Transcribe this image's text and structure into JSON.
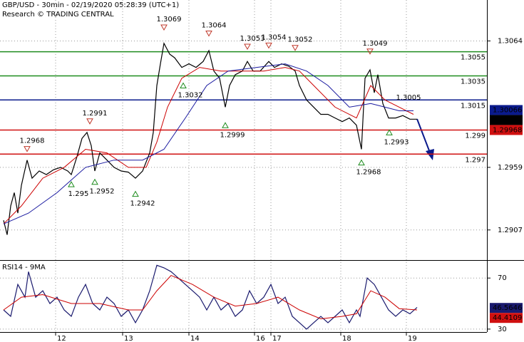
{
  "chart_data": [
    {
      "type": "line",
      "title": "GBP/USD - 30min - 02/19/2020 05:28:39 (UTC+1)",
      "subtitle": "Research © TRADING CENTRAL",
      "xlim": [
        0,
        683
      ],
      "ylim": [
        1.2882,
        1.3098
      ],
      "yticks": [
        1.3064,
        1.2959,
        1.2907
      ],
      "grid": true,
      "series": [
        {
          "color": "#000000",
          "x": [
            5,
            10,
            15,
            20,
            25,
            30,
            38,
            45,
            55,
            65,
            75,
            85,
            95,
            100,
            108,
            115,
            122,
            128,
            133,
            140,
            150,
            160,
            170,
            180,
            190,
            200,
            210,
            215,
            220,
            225,
            230,
            238,
            245,
            255,
            265,
            275,
            285,
            293,
            300,
            308,
            316,
            322,
            330,
            340,
            347,
            355,
            365,
            377,
            385,
            395,
            405,
            414,
            420,
            430,
            440,
            450,
            460,
            470,
            480,
            490,
            500,
            507,
            512,
            519,
            525,
            530,
            537,
            545,
            555,
            565,
            575,
            585
          ],
          "values": [
            1.2915,
            1.2903,
            1.2927,
            1.2938,
            1.2921,
            1.2944,
            1.2965,
            1.295,
            1.2956,
            1.2953,
            1.2957,
            1.2959,
            1.2956,
            1.2953,
            1.2968,
            1.2983,
            1.2988,
            1.2977,
            1.2956,
            1.2971,
            1.2965,
            1.2959,
            1.2956,
            1.2955,
            1.295,
            1.2956,
            1.2971,
            1.2988,
            1.3027,
            1.3045,
            1.3062,
            1.3053,
            1.305,
            1.3042,
            1.3045,
            1.3042,
            1.3047,
            1.3056,
            1.3039,
            1.3033,
            1.3009,
            1.3027,
            1.3036,
            1.3039,
            1.3047,
            1.3039,
            1.3039,
            1.3047,
            1.3042,
            1.3045,
            1.3043,
            1.3039,
            1.3027,
            1.3015,
            1.3009,
            1.3003,
            1.3003,
            1.3,
            1.2997,
            1.3,
            1.2994,
            1.2974,
            1.3033,
            1.304,
            1.3021,
            1.3036,
            1.3012,
            1.3,
            1.3,
            1.3002,
            1.2999,
            1.2999
          ]
        },
        {
          "color": "#cc0000",
          "x": [
            5,
            30,
            60,
            90,
            120,
            150,
            180,
            205,
            220,
            235,
            255,
            280,
            310,
            340,
            370,
            400,
            420,
            440,
            470,
            500,
            520,
            540,
            560,
            580
          ],
          "values": [
            1.2912,
            1.2927,
            1.295,
            1.2959,
            1.2974,
            1.2971,
            1.2959,
            1.2959,
            1.298,
            1.3009,
            1.3033,
            1.3042,
            1.3039,
            1.3039,
            1.3039,
            1.3042,
            1.3039,
            1.3027,
            1.3009,
            1.3,
            1.3027,
            1.3015,
            1.3009,
            1.3003
          ]
        },
        {
          "color": "#1a1aa0",
          "x": [
            5,
            40,
            80,
            120,
            160,
            200,
            230,
            260,
            290,
            320,
            360,
            400,
            430,
            460,
            490,
            520,
            560,
            580
          ],
          "values": [
            1.2912,
            1.2921,
            1.2938,
            1.2959,
            1.2965,
            1.2965,
            1.2974,
            1.3,
            1.3027,
            1.3039,
            1.3042,
            1.3045,
            1.3039,
            1.3027,
            1.3009,
            1.3012,
            1.3006,
            1.3006
          ]
        }
      ],
      "levels": [
        {
          "value": 1.3055,
          "color": "#1e8c1e"
        },
        {
          "value": 1.3035,
          "color": "#1e8c1e"
        },
        {
          "value": 1.3015,
          "color": "#0a1a8c"
        },
        {
          "value": 1.299,
          "color": "#d01010"
        },
        {
          "value": 1.297,
          "color": "#d01010"
        }
      ],
      "price_tags": [
        {
          "value": 1.30066,
          "color": "#0a1a8c"
        },
        {
          "value": 1.3,
          "color": "#000000"
        },
        {
          "value": 1.29968,
          "color": "#d01010"
        }
      ],
      "annotations": [
        {
          "x": 38,
          "value": 1.2968,
          "kind": "high"
        },
        {
          "x": 126,
          "value": 1.2991,
          "kind": "high"
        },
        {
          "x": 230,
          "value": 1.3069,
          "kind": "high"
        },
        {
          "x": 293,
          "value": 1.3064,
          "kind": "high"
        },
        {
          "x": 347,
          "value": 1.3053,
          "kind": "high"
        },
        {
          "x": 377,
          "value": 1.3054,
          "kind": "high"
        },
        {
          "x": 414,
          "value": 1.3052,
          "kind": "high"
        },
        {
          "x": 519,
          "value": 1.3049,
          "kind": "high"
        },
        {
          "x": 563,
          "value": 1.3005,
          "kind": "note"
        },
        {
          "x": 100,
          "value": 1.295,
          "kind": "low"
        },
        {
          "x": 133,
          "value": 1.2952,
          "kind": "low"
        },
        {
          "x": 190,
          "value": 1.2942,
          "kind": "low"
        },
        {
          "x": 257,
          "value": 1.3032,
          "kind": "low"
        },
        {
          "x": 316,
          "value": 1.2999,
          "kind": "low"
        },
        {
          "x": 507,
          "value": 1.2968,
          "kind": "low"
        },
        {
          "x": 546,
          "value": 1.2993,
          "kind": "low"
        }
      ]
    },
    {
      "type": "line",
      "title": "RSI14 - 9MA",
      "xlim": [
        0,
        683
      ],
      "ylim": [
        27.7,
        82.4
      ],
      "yticks": [
        70,
        30
      ],
      "grid": true,
      "xticks": [
        {
          "value": 78,
          "label": "12"
        },
        {
          "value": 172,
          "label": "13"
        },
        {
          "value": 265,
          "label": "14"
        },
        {
          "value": 357,
          "label": "16"
        },
        {
          "value": 380,
          "label": "17"
        },
        {
          "value": 478,
          "label": "18"
        },
        {
          "value": 570,
          "label": "19"
        }
      ],
      "series": [
        {
          "color": "#1a1a6e",
          "x": [
            5,
            15,
            25,
            35,
            40,
            50,
            60,
            70,
            80,
            90,
            100,
            110,
            120,
            130,
            140,
            150,
            160,
            170,
            180,
            190,
            200,
            210,
            220,
            230,
            240,
            250,
            260,
            270,
            280,
            290,
            300,
            310,
            320,
            330,
            340,
            350,
            360,
            370,
            380,
            390,
            400,
            410,
            420,
            430,
            440,
            450,
            460,
            470,
            480,
            490,
            500,
            505,
            515,
            525,
            535,
            545,
            555,
            565,
            575,
            585
          ],
          "values": [
            45,
            40,
            65,
            55,
            75,
            55,
            60,
            50,
            55,
            45,
            40,
            55,
            65,
            50,
            45,
            55,
            50,
            40,
            45,
            35,
            45,
            60,
            80,
            78,
            75,
            70,
            65,
            60,
            55,
            45,
            55,
            45,
            50,
            40,
            45,
            60,
            50,
            55,
            65,
            50,
            55,
            40,
            35,
            30,
            35,
            40,
            35,
            40,
            45,
            35,
            45,
            40,
            70,
            65,
            55,
            45,
            40,
            45,
            42,
            47
          ]
        },
        {
          "color": "#cc0000",
          "x": [
            5,
            30,
            60,
            100,
            140,
            180,
            200,
            220,
            240,
            270,
            300,
            330,
            360,
            390,
            420,
            450,
            480,
            500,
            520,
            540,
            560,
            585
          ],
          "values": [
            45,
            55,
            57,
            50,
            50,
            45,
            45,
            60,
            72,
            65,
            55,
            48,
            50,
            55,
            45,
            38,
            40,
            42,
            60,
            55,
            46,
            45
          ]
        }
      ],
      "price_tags": [
        {
          "value": 46.5646,
          "color": "#1a1a6e"
        },
        {
          "value": 44.4109,
          "color": "#d01010"
        }
      ]
    }
  ]
}
